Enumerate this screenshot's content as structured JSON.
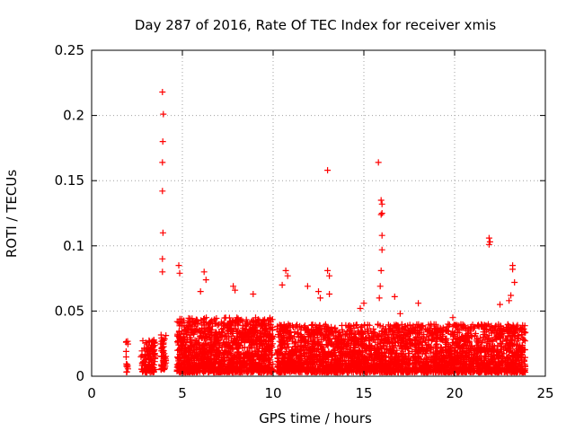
{
  "chart_data": {
    "type": "scatter",
    "title": "Day 287 of 2016, Rate Of TEC Index for receiver xmis",
    "xlabel": "GPS time / hours",
    "ylabel": "ROTI / TECUs",
    "xlim": [
      0,
      25
    ],
    "ylim": [
      0,
      0.25
    ],
    "xticks": [
      0,
      5,
      10,
      15,
      20,
      25
    ],
    "yticks": [
      0,
      0.05,
      0.1,
      0.15,
      0.2,
      0.25
    ],
    "xtick_labels": [
      "0",
      "5",
      "10",
      "15",
      "20",
      "25"
    ],
    "ytick_labels": [
      "0",
      "0.05",
      "0.1",
      "0.15",
      "0.2",
      "0.25"
    ],
    "grid": true,
    "marker": "+",
    "color": "#ff0000",
    "clusters": [
      {
        "x_range": [
          1.9,
          2.0
        ],
        "y_range": [
          0.003,
          0.033
        ],
        "count": 14
      },
      {
        "x_range": [
          2.7,
          3.5
        ],
        "y_range": [
          0.003,
          0.028
        ],
        "count": 120
      },
      {
        "x_range": [
          3.8,
          4.1
        ],
        "y_range": [
          0.005,
          0.032
        ],
        "count": 50
      },
      {
        "x_range": [
          4.7,
          10.0
        ],
        "y_range": [
          0.003,
          0.045
        ],
        "count": 1400
      },
      {
        "x_range": [
          10.2,
          23.9
        ],
        "y_range": [
          0.003,
          0.04
        ],
        "count": 3000
      }
    ],
    "points": [
      {
        "x": 3.9,
        "y": 0.218
      },
      {
        "x": 3.95,
        "y": 0.201
      },
      {
        "x": 3.92,
        "y": 0.18
      },
      {
        "x": 3.9,
        "y": 0.164
      },
      {
        "x": 3.9,
        "y": 0.142
      },
      {
        "x": 3.93,
        "y": 0.11
      },
      {
        "x": 3.9,
        "y": 0.09
      },
      {
        "x": 3.9,
        "y": 0.08
      },
      {
        "x": 4.8,
        "y": 0.085
      },
      {
        "x": 4.85,
        "y": 0.079
      },
      {
        "x": 6.2,
        "y": 0.08
      },
      {
        "x": 6.3,
        "y": 0.074
      },
      {
        "x": 6.0,
        "y": 0.065
      },
      {
        "x": 7.8,
        "y": 0.069
      },
      {
        "x": 7.9,
        "y": 0.066
      },
      {
        "x": 8.9,
        "y": 0.063
      },
      {
        "x": 10.7,
        "y": 0.081
      },
      {
        "x": 10.8,
        "y": 0.077
      },
      {
        "x": 10.5,
        "y": 0.07
      },
      {
        "x": 11.9,
        "y": 0.069
      },
      {
        "x": 12.5,
        "y": 0.065
      },
      {
        "x": 12.6,
        "y": 0.06
      },
      {
        "x": 13.0,
        "y": 0.158
      },
      {
        "x": 13.0,
        "y": 0.081
      },
      {
        "x": 13.1,
        "y": 0.077
      },
      {
        "x": 13.1,
        "y": 0.063
      },
      {
        "x": 15.8,
        "y": 0.164
      },
      {
        "x": 15.95,
        "y": 0.135
      },
      {
        "x": 16.0,
        "y": 0.132
      },
      {
        "x": 16.0,
        "y": 0.125
      },
      {
        "x": 15.95,
        "y": 0.124
      },
      {
        "x": 16.0,
        "y": 0.108
      },
      {
        "x": 16.0,
        "y": 0.097
      },
      {
        "x": 15.95,
        "y": 0.081
      },
      {
        "x": 15.9,
        "y": 0.069
      },
      {
        "x": 15.85,
        "y": 0.06
      },
      {
        "x": 16.7,
        "y": 0.061
      },
      {
        "x": 15.0,
        "y": 0.056
      },
      {
        "x": 14.8,
        "y": 0.052
      },
      {
        "x": 21.9,
        "y": 0.106
      },
      {
        "x": 21.95,
        "y": 0.103
      },
      {
        "x": 21.9,
        "y": 0.101
      },
      {
        "x": 23.2,
        "y": 0.085
      },
      {
        "x": 23.2,
        "y": 0.082
      },
      {
        "x": 23.3,
        "y": 0.072
      },
      {
        "x": 23.1,
        "y": 0.062
      },
      {
        "x": 23.0,
        "y": 0.058
      },
      {
        "x": 22.5,
        "y": 0.055
      },
      {
        "x": 18.0,
        "y": 0.056
      },
      {
        "x": 19.9,
        "y": 0.045
      },
      {
        "x": 17.0,
        "y": 0.048
      }
    ]
  }
}
